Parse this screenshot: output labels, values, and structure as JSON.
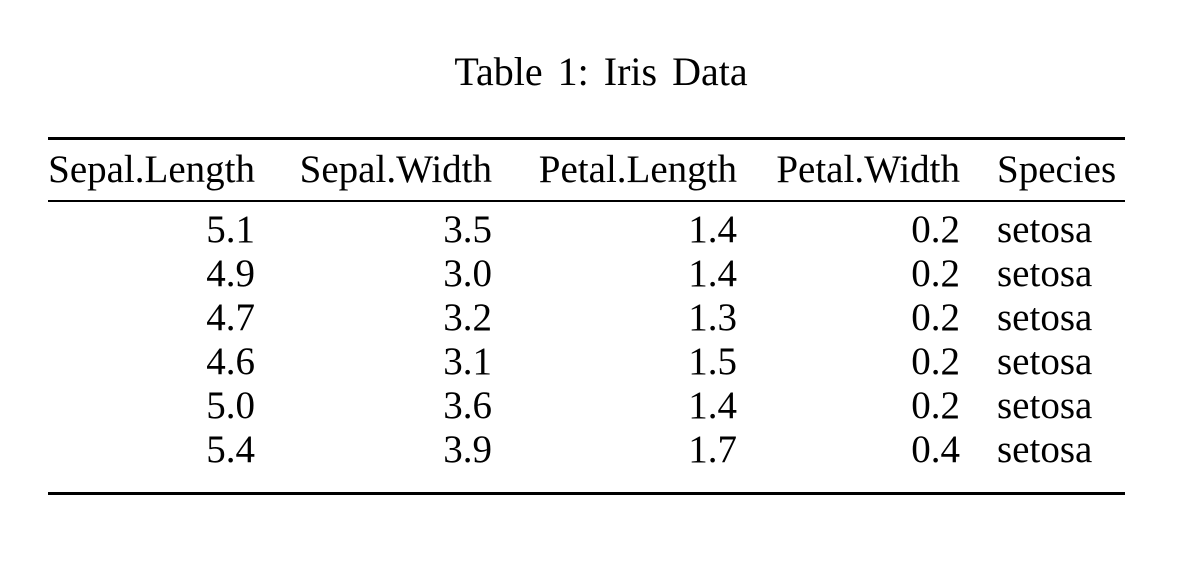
{
  "caption": "Table 1: Iris Data",
  "colors": {
    "background": "#ffffff",
    "text": "#000000",
    "rule": "#000000"
  },
  "table": {
    "columns": [
      {
        "label": "Sepal.Length",
        "align": "right"
      },
      {
        "label": "Sepal.Width",
        "align": "right"
      },
      {
        "label": "Petal.Length",
        "align": "right"
      },
      {
        "label": "Petal.Width",
        "align": "right"
      },
      {
        "label": "Species",
        "align": "left"
      }
    ],
    "rows": [
      [
        "5.1",
        "3.5",
        "1.4",
        "0.2",
        "setosa"
      ],
      [
        "4.9",
        "3.0",
        "1.4",
        "0.2",
        "setosa"
      ],
      [
        "4.7",
        "3.2",
        "1.3",
        "0.2",
        "setosa"
      ],
      [
        "4.6",
        "3.1",
        "1.5",
        "0.2",
        "setosa"
      ],
      [
        "5.0",
        "3.6",
        "1.4",
        "0.2",
        "setosa"
      ],
      [
        "5.4",
        "3.9",
        "1.7",
        "0.4",
        "setosa"
      ]
    ]
  }
}
